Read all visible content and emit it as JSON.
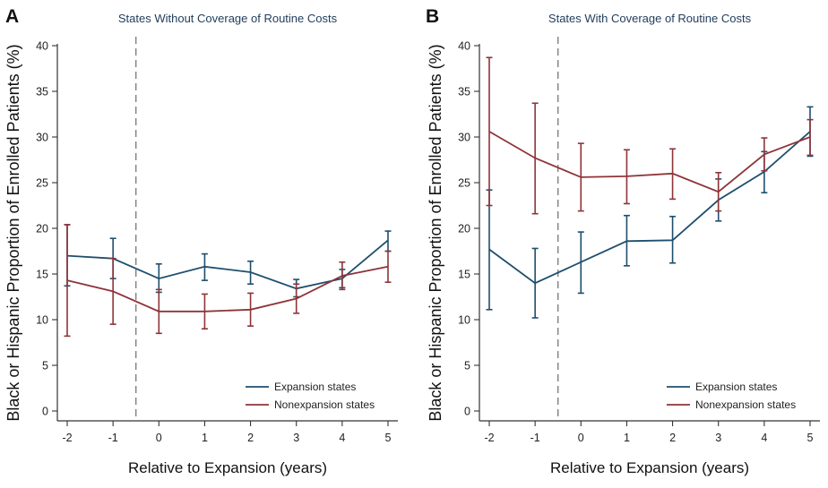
{
  "colors": {
    "expansion": "#1f4e6e",
    "nonexpansion": "#8e3439",
    "axis": "#333333",
    "dashed": "#777777"
  },
  "chart_data": [
    {
      "type": "line",
      "panel_label": "A",
      "title": "States Without Coverage of Routine Costs",
      "xlabel": "Relative to Expansion (years)",
      "ylabel": "Black or Hispanic Proportion of Enrolled Patients (%)",
      "x": [
        -2,
        -1,
        0,
        1,
        2,
        3,
        4,
        5
      ],
      "x_tick_labels": [
        "-2",
        "-1",
        "0",
        "1",
        "2",
        "3",
        "4",
        "5"
      ],
      "xlim": [
        -2,
        5
      ],
      "ylim": [
        0,
        40
      ],
      "y_ticks": [
        0,
        5,
        10,
        15,
        20,
        25,
        30,
        35,
        40
      ],
      "y_tick_labels": [
        "0",
        "5",
        "10",
        "15",
        "20",
        "25",
        "30",
        "35",
        "40"
      ],
      "reference_line_x": -0.5,
      "legend": {
        "position": "bottom-right",
        "entries": [
          "Expansion states",
          "Nonexpansion states"
        ]
      },
      "series": [
        {
          "name": "Expansion states",
          "color_key": "expansion",
          "values": [
            17.0,
            16.7,
            14.5,
            15.8,
            15.2,
            13.4,
            14.5,
            18.7
          ],
          "lower": [
            13.7,
            14.5,
            13.0,
            14.3,
            13.9,
            12.5,
            13.5,
            17.5
          ],
          "upper": [
            20.4,
            18.9,
            16.1,
            17.2,
            16.4,
            14.4,
            15.5,
            19.7
          ]
        },
        {
          "name": "Nonexpansion states",
          "color_key": "nonexpansion",
          "values": [
            14.3,
            13.1,
            10.9,
            10.9,
            11.1,
            12.3,
            14.8,
            15.8
          ],
          "lower": [
            8.2,
            9.5,
            8.5,
            9.0,
            9.3,
            10.7,
            13.3,
            14.1
          ],
          "upper": [
            20.4,
            16.7,
            13.3,
            12.8,
            12.9,
            13.9,
            16.3,
            17.5
          ]
        }
      ]
    },
    {
      "type": "line",
      "panel_label": "B",
      "title": "States With Coverage of Routine Costs",
      "xlabel": "Relative to Expansion (years)",
      "ylabel": "Black or Hispanic Proportion of Enrolled Patients (%)",
      "x": [
        -2,
        -1,
        0,
        1,
        2,
        3,
        4,
        5
      ],
      "x_tick_labels": [
        "-2",
        "-1",
        "0",
        "1",
        "2",
        "3",
        "4",
        "5"
      ],
      "xlim": [
        -2,
        5
      ],
      "ylim": [
        0,
        40
      ],
      "y_ticks": [
        0,
        5,
        10,
        15,
        20,
        25,
        30,
        35,
        40
      ],
      "y_tick_labels": [
        "0",
        "5",
        "10",
        "15",
        "20",
        "25",
        "30",
        "35",
        "40"
      ],
      "reference_line_x": -0.5,
      "legend": {
        "position": "bottom-right",
        "entries": [
          "Expansion states",
          "Nonexpansion states"
        ]
      },
      "series": [
        {
          "name": "Expansion states",
          "color_key": "expansion",
          "values": [
            17.7,
            14.0,
            16.3,
            18.6,
            18.7,
            23.1,
            26.2,
            30.6
          ],
          "lower": [
            11.1,
            10.2,
            12.9,
            15.9,
            16.2,
            20.8,
            23.9,
            27.9
          ],
          "upper": [
            24.2,
            17.8,
            19.6,
            21.4,
            21.3,
            25.4,
            28.4,
            33.3
          ]
        },
        {
          "name": "Nonexpansion states",
          "color_key": "nonexpansion",
          "values": [
            30.6,
            27.7,
            25.6,
            25.7,
            26.0,
            24.0,
            28.1,
            30.0
          ],
          "lower": [
            22.5,
            21.6,
            21.9,
            22.7,
            23.2,
            21.9,
            26.3,
            28.0
          ],
          "upper": [
            38.7,
            33.7,
            29.3,
            28.6,
            28.7,
            26.1,
            29.9,
            31.9
          ]
        }
      ]
    }
  ]
}
